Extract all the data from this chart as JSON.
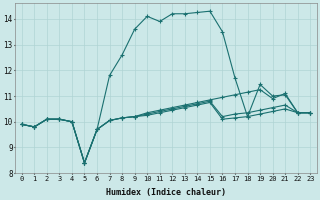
{
  "xlabel": "Humidex (Indice chaleur)",
  "xlim": [
    -0.5,
    23.5
  ],
  "ylim": [
    8,
    14.6
  ],
  "yticks": [
    8,
    9,
    10,
    11,
    12,
    13,
    14
  ],
  "xticks": [
    0,
    1,
    2,
    3,
    4,
    5,
    6,
    7,
    8,
    9,
    10,
    11,
    12,
    13,
    14,
    15,
    16,
    17,
    18,
    19,
    20,
    21,
    22,
    23
  ],
  "bg_color": "#cce8e8",
  "grid_color": "#b0d4d4",
  "line_color": "#1a7070",
  "lines": [
    [
      9.9,
      9.8,
      10.1,
      10.1,
      10.0,
      8.4,
      9.7,
      11.8,
      12.6,
      13.6,
      14.1,
      13.9,
      14.2,
      14.2,
      14.25,
      14.3,
      13.5,
      11.7,
      10.2,
      11.45,
      11.0,
      11.05,
      10.35,
      10.35
    ],
    [
      9.9,
      9.8,
      10.1,
      10.1,
      10.0,
      8.4,
      9.7,
      10.05,
      10.15,
      10.2,
      10.35,
      10.45,
      10.55,
      10.65,
      10.75,
      10.85,
      10.95,
      11.05,
      11.15,
      11.25,
      10.9,
      11.1,
      10.35,
      10.35
    ],
    [
      9.9,
      9.8,
      10.1,
      10.1,
      10.0,
      8.4,
      9.7,
      10.05,
      10.15,
      10.2,
      10.3,
      10.4,
      10.5,
      10.6,
      10.7,
      10.8,
      10.2,
      10.3,
      10.35,
      10.45,
      10.55,
      10.65,
      10.35,
      10.35
    ],
    [
      9.9,
      9.8,
      10.1,
      10.1,
      10.0,
      8.4,
      9.7,
      10.05,
      10.15,
      10.2,
      10.25,
      10.35,
      10.45,
      10.55,
      10.65,
      10.75,
      10.1,
      10.15,
      10.2,
      10.3,
      10.4,
      10.5,
      10.35,
      10.35
    ]
  ]
}
